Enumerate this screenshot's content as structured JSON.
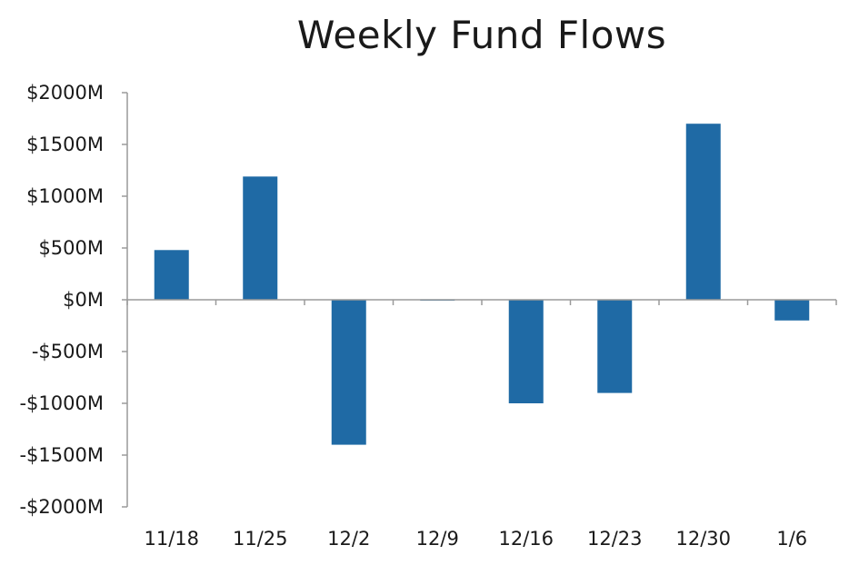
{
  "chart_data": {
    "type": "bar",
    "title": "Weekly Fund Flows",
    "xlabel": "",
    "ylabel": "",
    "categories": [
      "11/18",
      "11/25",
      "12/2",
      "12/9",
      "12/16",
      "12/23",
      "12/30",
      "1/6"
    ],
    "series": [
      {
        "values": [
          480,
          1190,
          -1400,
          0,
          -1000,
          -900,
          1700,
          -200
        ]
      }
    ],
    "ylim": [
      -2000,
      2000
    ],
    "yticks": [
      2000,
      1500,
      1000,
      500,
      0,
      -500,
      -1000,
      -1500,
      -2000
    ],
    "ytick_labels": [
      "$2000M",
      "$1500M",
      "$1000M",
      "$500M",
      "$0M",
      "-$500M",
      "-$1000M",
      "-$1500M",
      "-$2000M"
    ],
    "grid": false,
    "legend": "none",
    "colors": {
      "bar": "#1f6aa5",
      "axis": "#9a9a9a",
      "text": "#1a1a1a"
    }
  }
}
